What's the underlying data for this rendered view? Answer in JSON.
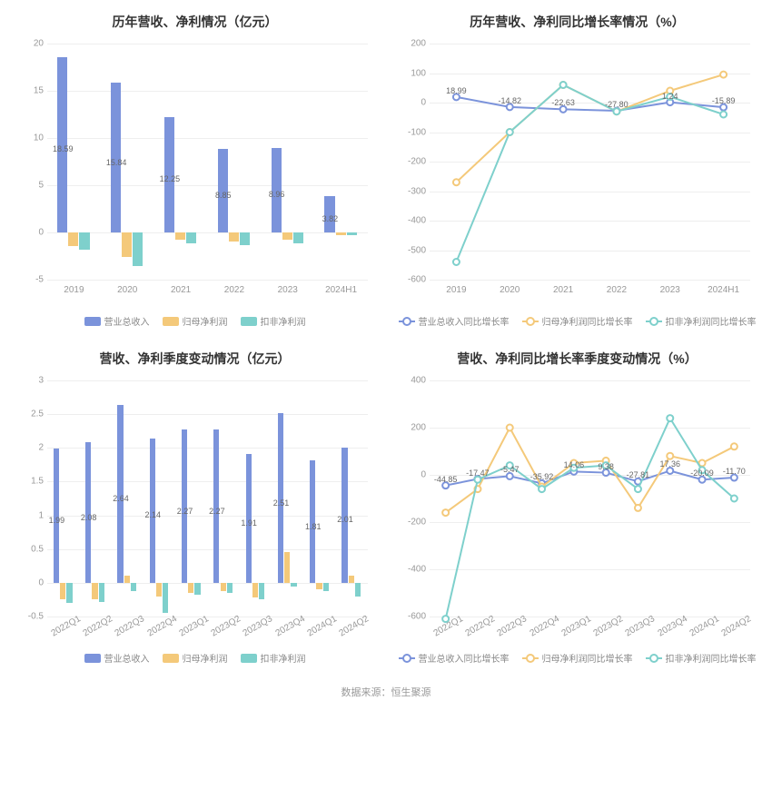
{
  "colors": {
    "series1": "#7b93db",
    "series2": "#f4c97a",
    "series3": "#7ed0cc",
    "grid": "#eeeeee",
    "axis_text": "#999999",
    "title": "#333333",
    "bg": "#ffffff"
  },
  "footer": "数据来源：恒生聚源",
  "chart1": {
    "type": "bar",
    "title": "历年营收、净利情况（亿元）",
    "categories": [
      "2019",
      "2020",
      "2021",
      "2022",
      "2023",
      "2024H1"
    ],
    "series": [
      {
        "name": "营业总收入",
        "values": [
          18.59,
          15.84,
          12.25,
          8.85,
          8.96,
          3.82
        ]
      },
      {
        "name": "归母净利润",
        "values": [
          -1.4,
          -2.6,
          -0.8,
          -1.0,
          -0.8,
          -0.3
        ]
      },
      {
        "name": "扣非净利润",
        "values": [
          -1.8,
          -3.6,
          -1.2,
          -1.3,
          -1.2,
          -0.3
        ]
      }
    ],
    "ylim": [
      -5,
      20
    ],
    "ytick_step": 5,
    "label_series": 0,
    "bar_group_width": 0.62,
    "fontsize_title": 14,
    "fontsize_axis": 10,
    "fontsize_label": 9,
    "x_rotate": false
  },
  "chart2": {
    "type": "line",
    "title": "历年营收、净利同比增长率情况（%）",
    "categories": [
      "2019",
      "2020",
      "2021",
      "2022",
      "2023",
      "2024H1"
    ],
    "series": [
      {
        "name": "营业总收入同比增长率",
        "values": [
          18.99,
          -14.82,
          -22.63,
          -27.8,
          1.24,
          -15.89
        ]
      },
      {
        "name": "归母净利润同比增长率",
        "values": [
          -270,
          -100,
          60,
          -30,
          40,
          95
        ]
      },
      {
        "name": "扣非净利润同比增长率",
        "values": [
          -540,
          -100,
          60,
          -30,
          20,
          -40
        ]
      }
    ],
    "ylim": [
      -600,
      200
    ],
    "ytick_step": 100,
    "label_series": 0,
    "fontsize_title": 14,
    "fontsize_axis": 10,
    "fontsize_label": 9,
    "x_rotate": false
  },
  "chart3": {
    "type": "bar",
    "title": "营收、净利季度变动情况（亿元）",
    "categories": [
      "2022Q1",
      "2022Q2",
      "2022Q3",
      "2022Q4",
      "2023Q1",
      "2023Q2",
      "2023Q3",
      "2023Q4",
      "2024Q1",
      "2024Q2"
    ],
    "series": [
      {
        "name": "营业总收入",
        "values": [
          1.99,
          2.08,
          2.64,
          2.14,
          2.27,
          2.27,
          1.91,
          2.51,
          1.81,
          2.01
        ]
      },
      {
        "name": "归母净利润",
        "values": [
          -0.25,
          -0.25,
          0.1,
          -0.2,
          -0.15,
          -0.12,
          -0.22,
          0.45,
          -0.1,
          0.1
        ]
      },
      {
        "name": "扣非净利润",
        "values": [
          -0.3,
          -0.28,
          -0.12,
          -0.45,
          -0.18,
          -0.15,
          -0.25,
          -0.05,
          -0.12,
          -0.2
        ]
      }
    ],
    "ylim": [
      -0.5,
      3
    ],
    "ytick_step": 0.5,
    "label_series": 0,
    "bar_group_width": 0.62,
    "fontsize_title": 14,
    "fontsize_axis": 10,
    "fontsize_label": 9,
    "x_rotate": true
  },
  "chart4": {
    "type": "line",
    "title": "营收、净利同比增长率季度变动情况（%）",
    "categories": [
      "2022Q1",
      "2022Q2",
      "2022Q3",
      "2022Q4",
      "2023Q1",
      "2023Q2",
      "2023Q3",
      "2023Q4",
      "2024Q1",
      "2024Q2"
    ],
    "series": [
      {
        "name": "营业总收入同比增长率",
        "values": [
          -44.85,
          -17.47,
          -5.47,
          -35.92,
          14.06,
          9.38,
          -27.81,
          17.36,
          -20.09,
          -11.7
        ]
      },
      {
        "name": "归母净利润同比增长率",
        "values": [
          -160,
          -60,
          200,
          -50,
          50,
          60,
          -140,
          80,
          50,
          120
        ]
      },
      {
        "name": "扣非净利润同比增长率",
        "values": [
          -610,
          -20,
          40,
          -60,
          30,
          40,
          -60,
          240,
          20,
          -100
        ]
      }
    ],
    "ylim": [
      -600,
      400
    ],
    "ytick_step": 200,
    "label_series": 0,
    "fontsize_title": 14,
    "fontsize_axis": 10,
    "fontsize_label": 9,
    "x_rotate": true
  },
  "legends": {
    "bar": [
      "营业总收入",
      "归母净利润",
      "扣非净利润"
    ],
    "line": [
      "营业总收入同比增长率",
      "归母净利润同比增长率",
      "扣非净利润同比增长率"
    ]
  }
}
